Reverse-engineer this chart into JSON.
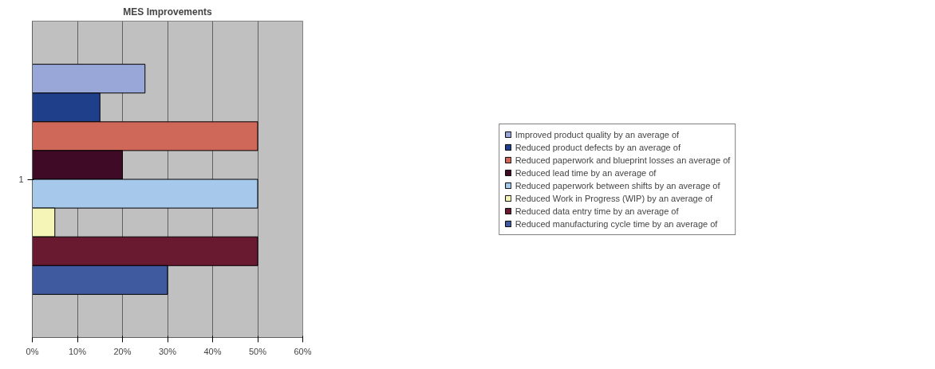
{
  "chart_data": {
    "type": "bar",
    "title": "MES Improvements",
    "orientation": "horizontal",
    "categories": [
      "1"
    ],
    "series": [
      {
        "name": "Improved product quality by an average of",
        "color": "#99a6d8",
        "values": [
          25
        ]
      },
      {
        "name": "Reduced product defects by an average of",
        "color": "#1f3f8a",
        "values": [
          15
        ]
      },
      {
        "name": "Reduced paperwork and blueprint losses an average of",
        "color": "#d0685a",
        "values": [
          50
        ]
      },
      {
        "name": "Reduced lead time by an average of",
        "color": "#3f0a25",
        "values": [
          20
        ]
      },
      {
        "name": "Reduced paperwork between shifts by an average of",
        "color": "#a6c8ea",
        "values": [
          50
        ]
      },
      {
        "name": "Reduced Work in Progress (WIP) by an average of",
        "color": "#f5f5b8",
        "values": [
          5
        ]
      },
      {
        "name": "Reduced data entry time by an average of",
        "color": "#6a1a30",
        "values": [
          50
        ]
      },
      {
        "name": "Reduced manufacturing cycle time by an average of",
        "color": "#3f5a9e",
        "values": [
          30
        ]
      }
    ],
    "xlim": [
      0,
      60
    ],
    "xticks": [
      {
        "value": 0,
        "label": "0%"
      },
      {
        "value": 10,
        "label": "10%"
      },
      {
        "value": 20,
        "label": "20%"
      },
      {
        "value": 30,
        "label": "30%"
      },
      {
        "value": 40,
        "label": "40%"
      },
      {
        "value": 50,
        "label": "50%"
      },
      {
        "value": 60,
        "label": "60%"
      }
    ],
    "grid": "x",
    "legend": "right"
  }
}
